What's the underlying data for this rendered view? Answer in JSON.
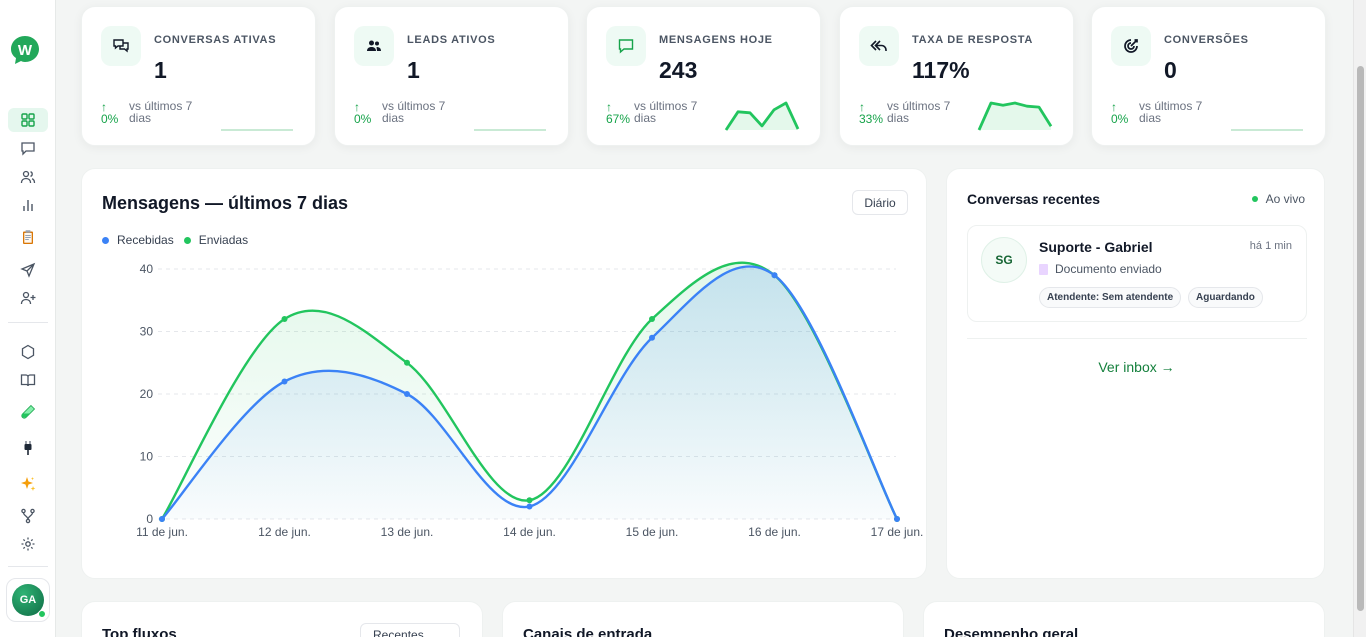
{
  "sidebar": {
    "logo_letter": "W",
    "items": [
      {
        "name": "nav-dashboard",
        "icon": "grid-icon",
        "active": true
      },
      {
        "name": "nav-conversations",
        "icon": "chat-icon"
      },
      {
        "name": "nav-contacts",
        "icon": "users-icon"
      },
      {
        "name": "nav-reports",
        "icon": "bar-chart-icon"
      },
      {
        "name": "nav-clipboard",
        "icon": "clipboard-icon"
      },
      {
        "name": "nav-campaigns",
        "icon": "send-icon"
      },
      {
        "name": "nav-add-user",
        "icon": "user-plus-icon"
      },
      {
        "name": "nav-integrations",
        "icon": "hexagon-icon"
      },
      {
        "name": "nav-knowledge",
        "icon": "book-icon"
      },
      {
        "name": "nav-tests",
        "icon": "test-tube-icon"
      },
      {
        "name": "nav-plugins",
        "icon": "plug-icon"
      },
      {
        "name": "nav-ai",
        "icon": "sparkles-icon"
      },
      {
        "name": "nav-flows",
        "icon": "branch-icon"
      },
      {
        "name": "nav-settings",
        "icon": "gear-icon"
      }
    ],
    "user_initials": "GA"
  },
  "stats": [
    {
      "label": "CONVERSAS ATIVAS",
      "value": "1",
      "arrow": "↑",
      "change": "0%",
      "compare": "vs últimos 7 dias",
      "icon": "chat-bubbles-icon",
      "spark": [
        0,
        0,
        0,
        0,
        0,
        0,
        0
      ]
    },
    {
      "label": "LEADS ATIVOS",
      "value": "1",
      "arrow": "↑",
      "change": "0%",
      "compare": "vs últimos 7 dias",
      "icon": "users-icon",
      "spark": [
        0,
        0,
        0,
        0,
        0,
        0,
        0
      ]
    },
    {
      "label": "MENSAGENS HOJE",
      "value": "243",
      "arrow": "↑",
      "change": "67%",
      "compare": "vs últimos 7 dias",
      "icon": "message-square-icon",
      "spark": [
        0,
        54,
        51,
        12,
        60,
        80,
        3
      ]
    },
    {
      "label": "TAXA DE RESPOSTA",
      "value": "117%",
      "arrow": "↑",
      "change": "33%",
      "compare": "vs últimos 7 dias",
      "icon": "reply-all-icon",
      "spark": [
        0,
        100,
        92,
        100,
        88,
        85,
        14
      ]
    },
    {
      "label": "CONVERSÕES",
      "value": "0",
      "arrow": "↑",
      "change": "0%",
      "compare": "vs últimos 7 dias",
      "icon": "target-icon",
      "spark": [
        0,
        0,
        0,
        0,
        0,
        0,
        0
      ]
    }
  ],
  "main_chart": {
    "title": "Mensagens — últimos 7 dias",
    "period_button": "Diário",
    "legend_received": "Recebidas",
    "legend_sent": "Enviadas",
    "colors": {
      "received": "#3b82f6",
      "sent": "#22c55e"
    }
  },
  "chart_data": {
    "type": "line",
    "categories": [
      "11 de jun.",
      "12 de jun.",
      "13 de jun.",
      "14 de jun.",
      "15 de jun.",
      "16 de jun.",
      "17 de jun."
    ],
    "series": [
      {
        "name": "Recebidas",
        "values": [
          0,
          22,
          20,
          2,
          29,
          39,
          0
        ]
      },
      {
        "name": "Enviadas",
        "values": [
          0,
          32,
          25,
          3,
          32,
          39,
          0
        ]
      }
    ],
    "ylim": [
      0,
      40
    ],
    "yticks": [
      0,
      10,
      20,
      30,
      40
    ],
    "grid": true,
    "legend_position": "top-left",
    "title": "Mensagens — últimos 7 dias"
  },
  "recent": {
    "title": "Conversas recentes",
    "live_label": "Ao vivo",
    "conversation": {
      "initials": "SG",
      "name": "Suporte - Gabriel",
      "time": "há 1 min",
      "preview": "Documento enviado",
      "tag_agent": "Atendente: Sem atendente",
      "tag_status": "Aguardando"
    },
    "inbox_link": "Ver inbox →"
  },
  "bottom": {
    "top_flows_title": "Top fluxos",
    "top_flows_button": "Recentes",
    "channels_title": "Canais de entrada",
    "performance_title": "Desempenho geral"
  }
}
